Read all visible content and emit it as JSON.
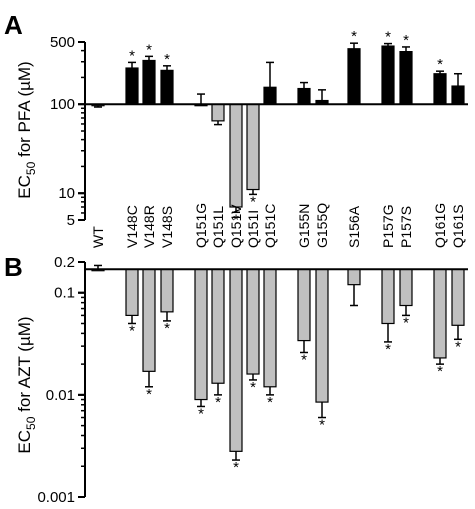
{
  "panel_a_letter": "A",
  "panel_b_letter": "B",
  "chart_data": [
    {
      "type": "bar",
      "panel": "A",
      "ylabel": "EC50 for PFA (µM)",
      "ylabel_parts": [
        "EC",
        "50",
        " for PFA (µM)"
      ],
      "yscale": "log",
      "ylim": [
        5,
        500
      ],
      "baseline": 100,
      "yticks": [
        5,
        10,
        100,
        500
      ],
      "ytick_labels": [
        "5",
        "10",
        "100",
        "500"
      ],
      "wt_bar_color": "#ffffff",
      "up_bar_color": "#000000",
      "down_bar_color": "#c0c0c0",
      "categories": [
        "WT",
        "V148C",
        "V148R",
        "V148S",
        "Q151G",
        "Q151L",
        "Q151V",
        "Q151I",
        "Q151C",
        "G155N",
        "G155Q",
        "S156A",
        "P157G",
        "P157S",
        "Q161G",
        "Q161S"
      ],
      "values": [
        97,
        255,
        310,
        240,
        100,
        65,
        7,
        11,
        155,
        150,
        110,
        420,
        450,
        390,
        220,
        160
      ],
      "errors": [
        4,
        40,
        35,
        30,
        30,
        6,
        0.9,
        1.3,
        140,
        25,
        35,
        65,
        30,
        50,
        15,
        60
      ],
      "significant": [
        false,
        true,
        true,
        true,
        false,
        false,
        true,
        true,
        false,
        false,
        false,
        true,
        true,
        true,
        true,
        false
      ]
    },
    {
      "type": "bar",
      "panel": "B",
      "ylabel": "EC50 for AZT (µM)",
      "ylabel_parts": [
        "EC",
        "50",
        " for AZT (µM)"
      ],
      "yscale": "log",
      "ylim": [
        0.001,
        0.2
      ],
      "baseline": 0.17,
      "yticks": [
        0.001,
        0.01,
        0.1,
        0.2
      ],
      "ytick_labels": [
        "0.001",
        "0.01",
        "0.1",
        "0.2"
      ],
      "bar_color": "#c0c0c0",
      "categories": [
        "WT",
        "V148C",
        "V148R",
        "V148S",
        "Q151G",
        "Q151L",
        "Q151V",
        "Q151I",
        "Q151C",
        "G155N",
        "G155Q",
        "S156A",
        "P157G",
        "P157S",
        "Q161G",
        "Q161S"
      ],
      "values": [
        0.17,
        0.06,
        0.017,
        0.065,
        0.009,
        0.013,
        0.0028,
        0.016,
        0.012,
        0.034,
        0.0085,
        0.12,
        0.05,
        0.075,
        0.023,
        0.048
      ],
      "errors": [
        0.015,
        0.01,
        0.005,
        0.012,
        0.0013,
        0.003,
        0.0005,
        0.002,
        0.002,
        0.008,
        0.0025,
        0.045,
        0.017,
        0.015,
        0.003,
        0.013
      ],
      "significant": [
        false,
        true,
        true,
        true,
        true,
        true,
        true,
        true,
        true,
        true,
        true,
        false,
        true,
        true,
        true,
        true
      ]
    }
  ]
}
